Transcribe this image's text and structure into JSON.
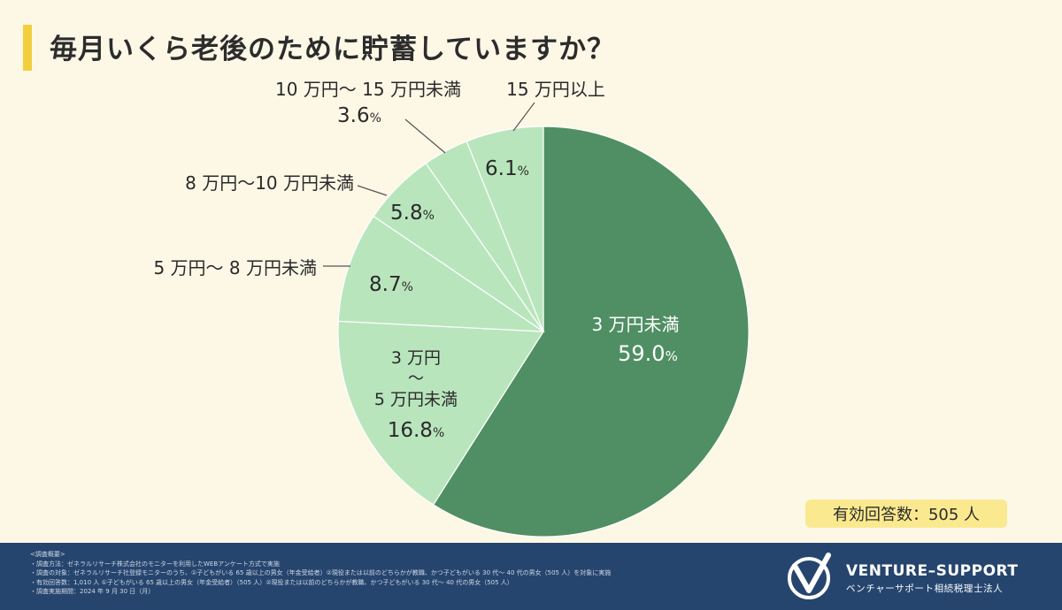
{
  "title": "毎月いくら老後のために貯蓄していますか？",
  "chart_data": {
    "type": "pie",
    "slices": [
      {
        "label": "3万円未満",
        "value": 59.0,
        "color": "#4f8f63"
      },
      {
        "label": "3万円～5万円未満",
        "label_lines": [
          "3 万円",
          "～",
          "5 万円未満"
        ],
        "value": 16.8,
        "color": "#b9e5bd"
      },
      {
        "label": "5万円～8万円未満",
        "value": 8.7,
        "color": "#b9e5bd"
      },
      {
        "label": "8万円～10万円未満",
        "value": 5.8,
        "color": "#b9e5bd"
      },
      {
        "label": "10万円～15万円未満",
        "value": 3.6,
        "color": "#b9e5bd"
      },
      {
        "label": "15万円以上",
        "value": 6.1,
        "color": "#b9e5bd"
      }
    ],
    "value_labels": [
      "59.0%",
      "16.8%",
      "8.7%",
      "5.8%",
      "3.6%",
      "6.1%"
    ],
    "callouts": {
      "inside_label": "3 万円未満",
      "slice2_lines": [
        "3 万円",
        "～",
        "5 万円未満"
      ],
      "label_5_8": "5 万円～ 8 万円未満",
      "label_8_10": "8 万円～10 万円未満",
      "label_10_15": "10 万円～ 15 万円未満",
      "label_15": "15 万円以上"
    }
  },
  "sample_badge": "有効回答数：505 人",
  "footer": {
    "notes": [
      "<調査概要>",
      "・調査方法：ゼネラルリサーチ株式会社のモニターを利用したWEBアンケート方式で実施",
      "・調査の対象：ゼネラルリサーチ社登録モニターのうち、①子どもがいる 65 歳以上の男女（年金受給者）②現役または以前のどちらかが教職、かつ子どもがいる 30 代～ 40 代の男女（505 人）を対象に実施",
      "・有効回答数：1,010 人 ①子どもがいる 65 歳以上の男女（年金受給者）（505 人）②現役または以前のどちらかが教職、かつ子どもがいる 30 代～ 40 代の男女（505 人）",
      "・調査実施期間：2024 年 9 月 30 日（月）"
    ],
    "brand": "VENTURE–SUPPORT",
    "brand_sub": "ベンチャーサポート相続税理士法人"
  }
}
